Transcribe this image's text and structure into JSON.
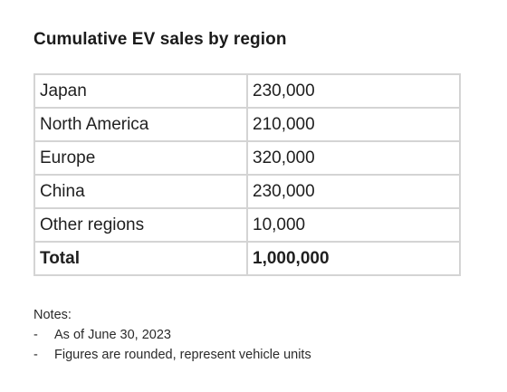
{
  "title": "Cumulative EV sales by region",
  "table": {
    "rows": [
      {
        "region": "Japan",
        "value": "230,000"
      },
      {
        "region": "North America",
        "value": "210,000"
      },
      {
        "region": "Europe",
        "value": "320,000"
      },
      {
        "region": "China",
        "value": "230,000"
      },
      {
        "region": "Other regions",
        "value": "10,000"
      }
    ],
    "total": {
      "label": "Total",
      "value": "1,000,000"
    }
  },
  "notes": {
    "heading": "Notes:",
    "items": [
      "As of June 30, 2023",
      "Figures are rounded, represent vehicle units"
    ]
  }
}
